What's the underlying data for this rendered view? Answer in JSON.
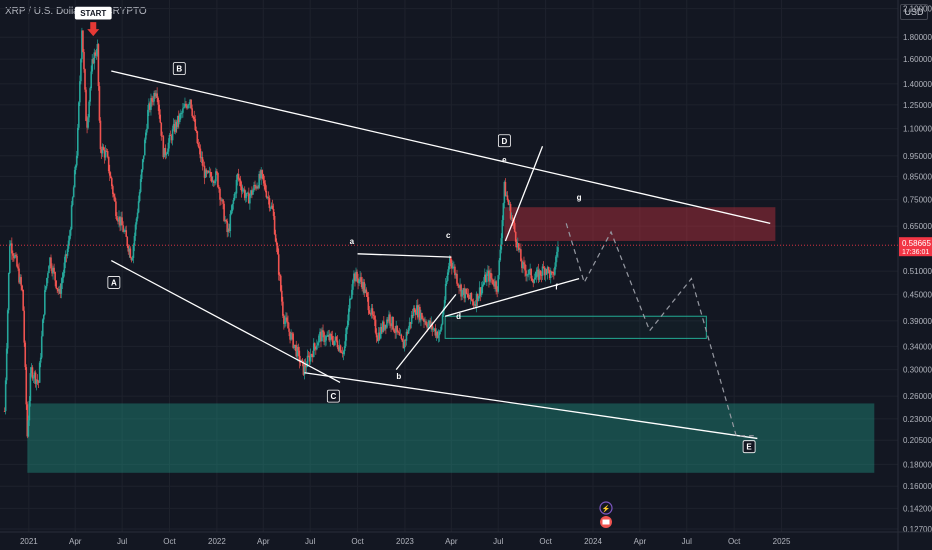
{
  "header": {
    "symbol_title": "XRP / U.S. Dollar, 1D, CRYPTO",
    "currency": "USD"
  },
  "chart_data": {
    "type": "candlestick",
    "scale": "log",
    "ylim": [
      0.125,
      2.2
    ],
    "y_ticks": [
      2.1,
      1.8,
      1.6,
      1.4,
      1.25,
      1.1,
      0.95,
      0.85,
      0.75,
      0.65,
      0.51,
      0.45,
      0.39,
      0.34,
      0.3,
      0.26,
      0.23,
      0.205,
      0.18,
      0.16,
      0.142,
      0.127
    ],
    "y_tick_labels": [
      "2.10000",
      "1.80000",
      "1.60000",
      "1.40000",
      "1.25000",
      "1.10000",
      "0.95000",
      "0.85000",
      "0.75000",
      "0.65000",
      "0.51000",
      "0.45000",
      "0.39000",
      "0.34000",
      "0.30000",
      "0.26000",
      "0.23000",
      "0.20500",
      "0.18000",
      "0.16000",
      "0.14200",
      "0.12700"
    ],
    "x_ticks": [
      "2021",
      "Apr",
      "Jul",
      "Oct",
      "2022",
      "Apr",
      "Jul",
      "Oct",
      "2023",
      "Apr",
      "Jul",
      "Oct",
      "2024",
      "Apr",
      "Jul",
      "Oct",
      "2025"
    ],
    "x_tick_dates": [
      "2021-01-01",
      "2021-04-01",
      "2021-07-01",
      "2021-10-01",
      "2022-01-01",
      "2022-04-01",
      "2022-07-01",
      "2022-10-01",
      "2023-01-01",
      "2023-04-01",
      "2023-07-01",
      "2023-10-01",
      "2024-01-01",
      "2024-04-01",
      "2024-07-01",
      "2024-10-01",
      "2025-01-01"
    ],
    "current_price": {
      "value": 0.58665,
      "label": "0.58665",
      "countdown": "17:36:01",
      "color": "#f23645"
    },
    "price_path": [
      [
        "2020-11-15",
        0.24
      ],
      [
        "2020-11-25",
        0.6
      ],
      [
        "2020-12-05",
        0.55
      ],
      [
        "2020-12-20",
        0.45
      ],
      [
        "2020-12-29",
        0.21
      ],
      [
        "2021-01-05",
        0.3
      ],
      [
        "2021-01-20",
        0.28
      ],
      [
        "2021-02-01",
        0.45
      ],
      [
        "2021-02-10",
        0.55
      ],
      [
        "2021-03-01",
        0.45
      ],
      [
        "2021-03-20",
        0.6
      ],
      [
        "2021-04-05",
        1.0
      ],
      [
        "2021-04-14",
        1.9
      ],
      [
        "2021-04-23",
        1.1
      ],
      [
        "2021-05-05",
        1.6
      ],
      [
        "2021-05-14",
        1.7
      ],
      [
        "2021-05-19",
        1.0
      ],
      [
        "2021-06-01",
        0.95
      ],
      [
        "2021-06-20",
        0.7
      ],
      [
        "2021-07-01",
        0.65
      ],
      [
        "2021-07-20",
        0.55
      ],
      [
        "2021-08-05",
        0.8
      ],
      [
        "2021-08-20",
        1.2
      ],
      [
        "2021-09-06",
        1.38
      ],
      [
        "2021-09-20",
        0.95
      ],
      [
        "2021-10-10",
        1.1
      ],
      [
        "2021-11-10",
        1.3
      ],
      [
        "2021-11-25",
        1.0
      ],
      [
        "2021-12-10",
        0.85
      ],
      [
        "2022-01-01",
        0.85
      ],
      [
        "2022-01-22",
        0.62
      ],
      [
        "2022-02-10",
        0.85
      ],
      [
        "2022-03-01",
        0.75
      ],
      [
        "2022-03-28",
        0.85
      ],
      [
        "2022-04-20",
        0.7
      ],
      [
        "2022-05-10",
        0.4
      ],
      [
        "2022-06-18",
        0.3
      ],
      [
        "2022-07-20",
        0.36
      ],
      [
        "2022-08-20",
        0.35
      ],
      [
        "2022-09-05",
        0.33
      ],
      [
        "2022-09-22",
        0.5
      ],
      [
        "2022-10-10",
        0.48
      ],
      [
        "2022-11-09",
        0.36
      ],
      [
        "2022-12-01",
        0.4
      ],
      [
        "2022-12-28",
        0.34
      ],
      [
        "2023-01-20",
        0.42
      ],
      [
        "2023-02-10",
        0.39
      ],
      [
        "2023-03-10",
        0.36
      ],
      [
        "2023-03-29",
        0.55
      ],
      [
        "2023-04-20",
        0.46
      ],
      [
        "2023-05-15",
        0.43
      ],
      [
        "2023-06-10",
        0.5
      ],
      [
        "2023-06-30",
        0.47
      ],
      [
        "2023-07-13",
        0.8
      ],
      [
        "2023-07-25",
        0.7
      ],
      [
        "2023-08-17",
        0.52
      ],
      [
        "2023-09-10",
        0.49
      ],
      [
        "2023-10-01",
        0.52
      ],
      [
        "2023-10-15",
        0.49
      ],
      [
        "2023-10-25",
        0.58665
      ]
    ],
    "zones": [
      {
        "name": "supply",
        "x0": "2023-07-13",
        "x1": "2024-12-20",
        "y0": 0.6,
        "y1": 0.72,
        "color": "#f23645"
      },
      {
        "name": "mid",
        "x0": "2023-03-20",
        "x1": "2024-08-08",
        "y0": 0.355,
        "y1": 0.4,
        "color": "#22ab94"
      },
      {
        "name": "demand",
        "x0": "2020-12-29",
        "x1": "2025-06-30",
        "y0": 0.172,
        "y1": 0.25,
        "color": "#22ab94"
      }
    ],
    "trendlines": [
      [
        [
          "2021-06-10",
          1.5
        ],
        [
          "2024-12-10",
          0.66
        ]
      ],
      [
        [
          "2021-06-10",
          0.54
        ],
        [
          "2022-08-28",
          0.28
        ]
      ],
      [
        [
          "2022-06-20",
          0.295
        ],
        [
          "2024-11-15",
          0.207
        ]
      ],
      [
        [
          "2022-10-01",
          0.56
        ],
        [
          "2023-04-01",
          0.55
        ]
      ],
      [
        [
          "2022-12-15",
          0.3
        ],
        [
          "2023-04-10",
          0.45
        ]
      ],
      [
        [
          "2023-03-20",
          0.4
        ],
        [
          "2023-12-05",
          0.49
        ]
      ],
      [
        [
          "2023-07-15",
          0.6
        ],
        [
          "2023-09-25",
          1.0
        ]
      ]
    ],
    "projection": [
      [
        "2023-11-10",
        0.66
      ],
      [
        "2023-12-15",
        0.48
      ],
      [
        "2024-02-05",
        0.63
      ],
      [
        "2024-04-20",
        0.37
      ],
      [
        "2024-07-10",
        0.49
      ],
      [
        "2024-10-05",
        0.21
      ],
      [
        "2024-11-08",
        0.21
      ]
    ],
    "wave_labels": [
      {
        "text": "START",
        "x": "2021-05-06",
        "y": 2.05,
        "boxed": true,
        "filled": true
      },
      {
        "text": "A",
        "x": "2021-06-15",
        "y": 0.48,
        "boxed": true
      },
      {
        "text": "B",
        "x": "2021-10-20",
        "y": 1.52,
        "boxed": true
      },
      {
        "text": "C",
        "x": "2022-08-15",
        "y": 0.26,
        "boxed": true
      },
      {
        "text": "D",
        "x": "2023-07-13",
        "y": 1.03,
        "boxed": true
      },
      {
        "text": "E",
        "x": "2024-10-30",
        "y": 0.198,
        "boxed": true
      },
      {
        "text": "a",
        "x": "2022-09-20",
        "y": 0.6,
        "boxed": false
      },
      {
        "text": "b",
        "x": "2022-12-20",
        "y": 0.29,
        "boxed": false
      },
      {
        "text": "c",
        "x": "2023-03-26",
        "y": 0.62,
        "boxed": false
      },
      {
        "text": "d",
        "x": "2023-04-15",
        "y": 0.4,
        "boxed": false
      },
      {
        "text": "e",
        "x": "2023-07-13",
        "y": 0.93,
        "boxed": false
      },
      {
        "text": "f",
        "x": "2023-10-22",
        "y": 0.47,
        "boxed": false
      },
      {
        "text": "g",
        "x": "2023-12-05",
        "y": 0.76,
        "boxed": false
      }
    ]
  }
}
